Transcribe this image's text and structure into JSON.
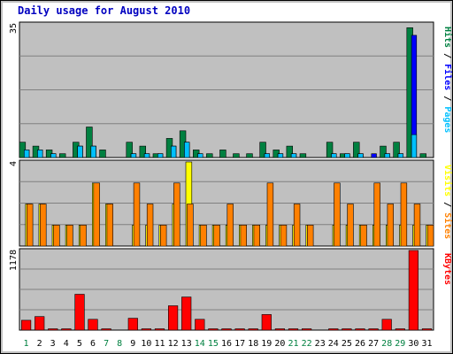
{
  "chart_data": {
    "type": "bar",
    "title": "Daily usage for August 2010",
    "days": [
      "1",
      "2",
      "3",
      "4",
      "5",
      "6",
      "7",
      "8",
      "9",
      "10",
      "11",
      "12",
      "13",
      "14",
      "15",
      "16",
      "17",
      "18",
      "19",
      "20",
      "21",
      "22",
      "23",
      "24",
      "25",
      "26",
      "27",
      "28",
      "29",
      "30",
      "31"
    ],
    "weekend_days": [
      "1",
      "7",
      "8",
      "14",
      "15",
      "21",
      "22",
      "28",
      "29"
    ],
    "panels": [
      {
        "id": "hits",
        "ymax_label": "35",
        "ylim": [
          0,
          35
        ],
        "axis_labels": [
          "Hits",
          "Files",
          "Pages"
        ],
        "series": [
          {
            "name": "Hits",
            "color": "#008040",
            "values": [
              4,
              3,
              2,
              1,
              4,
              8,
              2,
              0,
              4,
              3,
              1,
              5,
              7,
              2,
              1,
              2,
              1,
              1,
              4,
              2,
              3,
              1,
              0,
              4,
              1,
              4,
              0,
              3,
              4,
              34,
              1
            ]
          },
          {
            "name": "Files",
            "color": "#0000FF",
            "values": [
              2,
              2,
              1,
              0,
              3,
              3,
              0,
              0,
              1,
              1,
              1,
              3,
              4,
              1,
              0,
              0,
              0,
              0,
              1,
              1,
              1,
              0,
              0,
              1,
              1,
              1,
              1,
              1,
              1,
              32,
              0
            ]
          },
          {
            "name": "Pages",
            "color": "#00C0FF",
            "values": [
              2,
              2,
              1,
              0,
              3,
              3,
              0,
              0,
              1,
              1,
              1,
              3,
              4,
              1,
              0,
              0,
              0,
              0,
              1,
              1,
              1,
              0,
              0,
              1,
              1,
              1,
              0,
              1,
              1,
              6,
              0
            ]
          }
        ]
      },
      {
        "id": "visits",
        "ymax_label": "4",
        "ylim": [
          0,
          4
        ],
        "axis_labels": [
          "Visits",
          "Sites"
        ],
        "series": [
          {
            "name": "Visits",
            "color": "#FFFF00",
            "values": [
              2,
              2,
              1,
              1,
              1,
              3,
              2,
              0,
              1,
              1,
              1,
              2,
              4,
              1,
              1,
              1,
              1,
              1,
              1,
              1,
              1,
              1,
              0,
              1,
              1,
              1,
              1,
              1,
              1,
              1,
              1
            ]
          },
          {
            "name": "Sites",
            "color": "#FF8000",
            "values": [
              2,
              2,
              1,
              1,
              1,
              3,
              2,
              0,
              3,
              2,
              1,
              3,
              2,
              1,
              1,
              2,
              1,
              1,
              3,
              1,
              2,
              1,
              0,
              3,
              2,
              1,
              3,
              2,
              3,
              2,
              1
            ]
          }
        ]
      },
      {
        "id": "kbytes",
        "ymax_label": "1178",
        "ylim": [
          0,
          1178
        ],
        "axis_labels": [
          "KBytes"
        ],
        "series": [
          {
            "name": "KBytes",
            "color": "#FF0000",
            "values": [
              145,
              200,
              20,
              20,
              530,
              160,
              20,
              0,
              175,
              20,
              20,
              360,
              490,
              160,
              20,
              20,
              20,
              20,
              230,
              20,
              20,
              20,
              0,
              20,
              20,
              20,
              20,
              160,
              20,
              1178,
              20
            ]
          }
        ]
      }
    ]
  },
  "colors": {
    "title": "#0000C0",
    "plot_bg": "#C0C0C0",
    "grid": "#808080",
    "weekday_label": "#000000",
    "weekend_label": "#008040",
    "axis_separator": "#000000"
  }
}
